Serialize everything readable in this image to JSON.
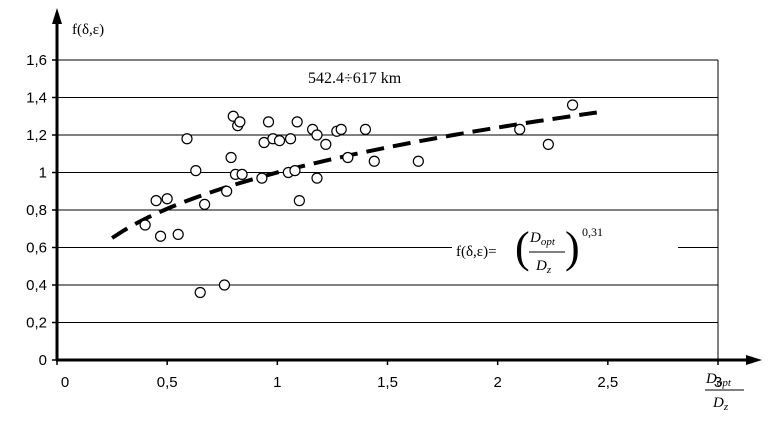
{
  "chart_data": {
    "type": "scatter",
    "title": "",
    "annotation": "542.4÷617 km",
    "ylabel": "f(δ,ε)",
    "xlabel": {
      "numerator": "D",
      "numerator_sub": "opt",
      "denominator": "D",
      "denominator_sub": "z"
    },
    "formula": {
      "prefix": "f(δ,ε)=",
      "numerator": "D",
      "numerator_sub": "opt",
      "denominator": "D",
      "denominator_sub": "z",
      "exponent": "0,31"
    },
    "xlim": [
      0,
      3
    ],
    "ylim": [
      0,
      1.6
    ],
    "x_ticks": [
      {
        "value": 0,
        "label": "0"
      },
      {
        "value": 0.5,
        "label": "0,5"
      },
      {
        "value": 1,
        "label": "1"
      },
      {
        "value": 1.5,
        "label": "1,5"
      },
      {
        "value": 2,
        "label": "2"
      },
      {
        "value": 2.5,
        "label": "2,5"
      },
      {
        "value": 3,
        "label": "3"
      }
    ],
    "y_ticks": [
      {
        "value": 0,
        "label": "0"
      },
      {
        "value": 0.2,
        "label": "0,2"
      },
      {
        "value": 0.4,
        "label": "0,4"
      },
      {
        "value": 0.6,
        "label": "0,6"
      },
      {
        "value": 0.8,
        "label": "0,8"
      },
      {
        "value": 1,
        "label": "1"
      },
      {
        "value": 1.2,
        "label": "1,2"
      },
      {
        "value": 1.4,
        "label": "1,4"
      },
      {
        "value": 1.6,
        "label": "1,6"
      }
    ],
    "grid": {
      "horizontal": true,
      "vertical": false
    },
    "points": [
      {
        "x": 0.4,
        "y": 0.72
      },
      {
        "x": 0.45,
        "y": 0.85
      },
      {
        "x": 0.47,
        "y": 0.66
      },
      {
        "x": 0.5,
        "y": 0.86
      },
      {
        "x": 0.55,
        "y": 0.67
      },
      {
        "x": 0.59,
        "y": 1.18
      },
      {
        "x": 0.63,
        "y": 1.01
      },
      {
        "x": 0.65,
        "y": 0.36
      },
      {
        "x": 0.67,
        "y": 0.83
      },
      {
        "x": 0.76,
        "y": 0.4
      },
      {
        "x": 0.77,
        "y": 0.9
      },
      {
        "x": 0.79,
        "y": 1.08
      },
      {
        "x": 0.8,
        "y": 1.3
      },
      {
        "x": 0.81,
        "y": 0.99
      },
      {
        "x": 0.82,
        "y": 1.25
      },
      {
        "x": 0.83,
        "y": 1.27
      },
      {
        "x": 0.84,
        "y": 0.99
      },
      {
        "x": 0.93,
        "y": 0.97
      },
      {
        "x": 0.94,
        "y": 1.16
      },
      {
        "x": 0.96,
        "y": 1.27
      },
      {
        "x": 0.98,
        "y": 1.18
      },
      {
        "x": 1.01,
        "y": 1.17
      },
      {
        "x": 1.05,
        "y": 1.0
      },
      {
        "x": 1.06,
        "y": 1.18
      },
      {
        "x": 1.08,
        "y": 1.01
      },
      {
        "x": 1.09,
        "y": 1.27
      },
      {
        "x": 1.1,
        "y": 0.85
      },
      {
        "x": 1.16,
        "y": 1.23
      },
      {
        "x": 1.18,
        "y": 0.97
      },
      {
        "x": 1.18,
        "y": 1.2
      },
      {
        "x": 1.22,
        "y": 1.15
      },
      {
        "x": 1.27,
        "y": 1.22
      },
      {
        "x": 1.29,
        "y": 1.23
      },
      {
        "x": 1.32,
        "y": 1.08
      },
      {
        "x": 1.4,
        "y": 1.23
      },
      {
        "x": 1.44,
        "y": 1.06
      },
      {
        "x": 1.64,
        "y": 1.06
      },
      {
        "x": 2.1,
        "y": 1.23
      },
      {
        "x": 2.23,
        "y": 1.15
      },
      {
        "x": 2.34,
        "y": 1.36
      }
    ],
    "trendline": {
      "style": "dashed",
      "exponent": 0.31,
      "x_start": 0.25,
      "x_end": 2.45
    }
  }
}
